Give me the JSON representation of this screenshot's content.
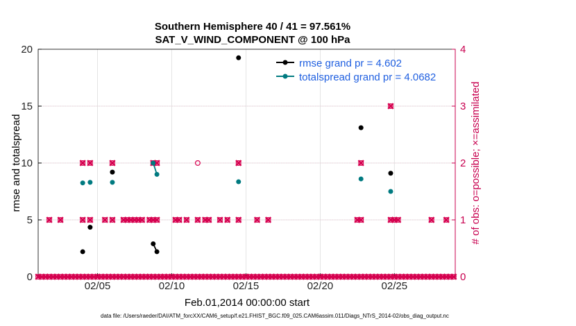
{
  "chart_data": {
    "type": "scatter",
    "title": "Southern Hemisphere 40 / 41 = 97.561%",
    "subtitle": "SAT_V_WIND_COMPONENT @ 100 hPa",
    "xlabel": "Feb.01,2014 00:00:00 start",
    "ylabel": "rmse and totalspread",
    "y2label": "# of obs: o=possible; ×=assimilated",
    "xlim": [
      1,
      29.1
    ],
    "ylim": [
      0,
      20
    ],
    "y2lim": [
      0,
      4
    ],
    "xticks": [
      5,
      10,
      15,
      20,
      25
    ],
    "xtick_labels": [
      "02/05",
      "02/10",
      "02/15",
      "02/20",
      "02/25"
    ],
    "yticks": [
      0,
      5,
      10,
      15,
      20
    ],
    "y2ticks": [
      0,
      1,
      2,
      3,
      4
    ],
    "grid": true,
    "legend_position": "top-right",
    "colors": {
      "rmse": "#000000",
      "spread": "#007a80",
      "obs": "#d6004f",
      "grid": "#dddddd",
      "right_axis": "#c8004f",
      "legend_text": "#1f5fe0"
    },
    "series": [
      {
        "name": "rmse grand pr = 4.602",
        "x": [
          4.0,
          4.5,
          6.0,
          8.75,
          9.0,
          14.5,
          22.75,
          24.75
        ],
        "y": [
          2.2,
          4.35,
          9.2,
          2.9,
          2.2,
          19.25,
          13.1,
          9.1
        ],
        "connect": [
          [
            3,
            4
          ]
        ]
      },
      {
        "name": "totalspread grand pr = 4.0682",
        "x": [
          4.0,
          4.5,
          6.0,
          8.75,
          9.0,
          14.5,
          22.75,
          24.75
        ],
        "y": [
          8.25,
          8.3,
          8.3,
          10.0,
          9.0,
          8.35,
          8.6,
          7.5
        ],
        "connect": [
          [
            3,
            4
          ]
        ]
      },
      {
        "name": "obs possible",
        "x": [
          1.0,
          1.25,
          1.5,
          1.75,
          2.0,
          2.25,
          2.5,
          2.75,
          3.0,
          3.25,
          3.5,
          3.75,
          4.0,
          4.25,
          4.5,
          4.75,
          5.0,
          5.25,
          5.5,
          5.75,
          6.0,
          6.25,
          6.5,
          6.75,
          7.0,
          7.25,
          7.5,
          7.75,
          8.0,
          8.25,
          8.5,
          8.75,
          9.0,
          9.25,
          9.5,
          9.75,
          10.0,
          10.25,
          10.5,
          10.75,
          11.0,
          11.25,
          11.5,
          11.75,
          12.0,
          12.25,
          12.5,
          12.75,
          13.0,
          13.25,
          13.5,
          13.75,
          14.0,
          14.25,
          14.5,
          14.75,
          15.0,
          15.25,
          15.5,
          15.75,
          16.0,
          16.25,
          16.5,
          16.75,
          17.0,
          17.25,
          17.5,
          17.75,
          18.0,
          18.25,
          18.5,
          18.75,
          19.0,
          19.25,
          19.5,
          19.75,
          20.0,
          20.25,
          20.5,
          20.75,
          21.0,
          21.25,
          21.5,
          21.75,
          22.0,
          22.25,
          22.5,
          22.75,
          23.0,
          23.25,
          23.5,
          23.75,
          24.0,
          24.25,
          24.5,
          24.75,
          25.0,
          25.25,
          25.5,
          25.75,
          26.0,
          26.25,
          26.5,
          26.75,
          27.0,
          27.25,
          27.5,
          27.75,
          28.0,
          28.25,
          28.5,
          28.75,
          29.0,
          1.75,
          2.5,
          4.0,
          4.5,
          5.5,
          6.0,
          6.75,
          7.0,
          7.25,
          7.5,
          7.75,
          8.0,
          8.5,
          8.75,
          9.0,
          10.25,
          10.5,
          11.0,
          11.75,
          12.25,
          12.5,
          13.25,
          13.75,
          14.5,
          15.75,
          16.5,
          22.5,
          22.75,
          24.75,
          25.0,
          25.25,
          27.5,
          28.5,
          4.0,
          4.5,
          6.0,
          8.75,
          9.0,
          11.75,
          14.5,
          22.75,
          24.75
        ],
        "y": [
          0,
          0,
          0,
          0,
          0,
          0,
          0,
          0,
          0,
          0,
          0,
          0,
          0,
          0,
          0,
          0,
          0,
          0,
          0,
          0,
          0,
          0,
          0,
          0,
          0,
          0,
          0,
          0,
          0,
          0,
          0,
          0,
          0,
          0,
          0,
          0,
          0,
          0,
          0,
          0,
          0,
          0,
          0,
          0,
          0,
          0,
          0,
          0,
          0,
          0,
          0,
          0,
          0,
          0,
          0,
          0,
          0,
          0,
          0,
          0,
          0,
          0,
          0,
          0,
          0,
          0,
          0,
          0,
          0,
          0,
          0,
          0,
          0,
          0,
          0,
          0,
          0,
          0,
          0,
          0,
          0,
          0,
          0,
          0,
          0,
          0,
          0,
          0,
          0,
          0,
          0,
          0,
          0,
          0,
          0,
          0,
          0,
          0,
          0,
          0,
          0,
          0,
          0,
          0,
          0,
          0,
          0,
          0,
          0,
          0,
          0,
          0,
          0,
          1,
          1,
          1,
          1,
          1,
          1,
          1,
          1,
          1,
          1,
          1,
          1,
          1,
          1,
          1,
          1,
          1,
          1,
          1,
          1,
          1,
          1,
          1,
          1,
          1,
          1,
          1,
          1,
          1,
          1,
          1,
          1,
          1,
          2,
          2,
          2,
          2,
          2,
          2,
          2,
          2,
          3
        ]
      },
      {
        "name": "obs assimilated",
        "x": [
          1.0,
          1.25,
          1.5,
          1.75,
          2.0,
          2.25,
          2.5,
          2.75,
          3.0,
          3.25,
          3.5,
          3.75,
          4.0,
          4.25,
          4.5,
          4.75,
          5.0,
          5.25,
          5.5,
          5.75,
          6.0,
          6.25,
          6.5,
          6.75,
          7.0,
          7.25,
          7.5,
          7.75,
          8.0,
          8.25,
          8.5,
          8.75,
          9.0,
          9.25,
          9.5,
          9.75,
          10.0,
          10.25,
          10.5,
          10.75,
          11.0,
          11.25,
          11.5,
          11.75,
          12.0,
          12.25,
          12.5,
          12.75,
          13.0,
          13.25,
          13.5,
          13.75,
          14.0,
          14.25,
          14.5,
          14.75,
          15.0,
          15.25,
          15.5,
          15.75,
          16.0,
          16.25,
          16.5,
          16.75,
          17.0,
          17.25,
          17.5,
          17.75,
          18.0,
          18.25,
          18.5,
          18.75,
          19.0,
          19.25,
          19.5,
          19.75,
          20.0,
          20.25,
          20.5,
          20.75,
          21.0,
          21.25,
          21.5,
          21.75,
          22.0,
          22.25,
          22.5,
          22.75,
          23.0,
          23.25,
          23.5,
          23.75,
          24.0,
          24.25,
          24.5,
          24.75,
          25.0,
          25.25,
          25.5,
          25.75,
          26.0,
          26.25,
          26.5,
          26.75,
          27.0,
          27.25,
          27.5,
          27.75,
          28.0,
          28.25,
          28.5,
          28.75,
          29.0,
          1.75,
          2.5,
          4.0,
          4.5,
          5.5,
          6.0,
          6.75,
          7.0,
          7.25,
          7.5,
          7.75,
          8.0,
          8.5,
          8.75,
          9.0,
          10.25,
          10.5,
          11.0,
          11.75,
          12.25,
          12.5,
          13.25,
          13.75,
          14.5,
          15.75,
          16.5,
          22.5,
          22.75,
          24.75,
          25.0,
          25.25,
          27.5,
          28.5,
          4.0,
          4.5,
          6.0,
          8.75,
          9.0,
          14.5,
          22.75,
          24.75
        ],
        "y": [
          0,
          0,
          0,
          0,
          0,
          0,
          0,
          0,
          0,
          0,
          0,
          0,
          0,
          0,
          0,
          0,
          0,
          0,
          0,
          0,
          0,
          0,
          0,
          0,
          0,
          0,
          0,
          0,
          0,
          0,
          0,
          0,
          0,
          0,
          0,
          0,
          0,
          0,
          0,
          0,
          0,
          0,
          0,
          0,
          0,
          0,
          0,
          0,
          0,
          0,
          0,
          0,
          0,
          0,
          0,
          0,
          0,
          0,
          0,
          0,
          0,
          0,
          0,
          0,
          0,
          0,
          0,
          0,
          0,
          0,
          0,
          0,
          0,
          0,
          0,
          0,
          0,
          0,
          0,
          0,
          0,
          0,
          0,
          0,
          0,
          0,
          0,
          0,
          0,
          0,
          0,
          0,
          0,
          0,
          0,
          0,
          0,
          0,
          0,
          0,
          0,
          0,
          0,
          0,
          0,
          0,
          0,
          0,
          0,
          0,
          0,
          0,
          0,
          1,
          1,
          1,
          1,
          1,
          1,
          1,
          1,
          1,
          1,
          1,
          1,
          1,
          1,
          1,
          1,
          1,
          1,
          1,
          1,
          1,
          1,
          1,
          1,
          1,
          1,
          1,
          1,
          1,
          1,
          1,
          1,
          1,
          2,
          2,
          2,
          2,
          2,
          2,
          2,
          3
        ]
      }
    ],
    "footer": "data file: /Users/raeder/DAI/ATM_forcXX/CAM6_setup/f.e21.FHIST_BGC.f09_025.CAM6assim.011/Diags_NTrS_2014-02/obs_diag_output.nc"
  }
}
